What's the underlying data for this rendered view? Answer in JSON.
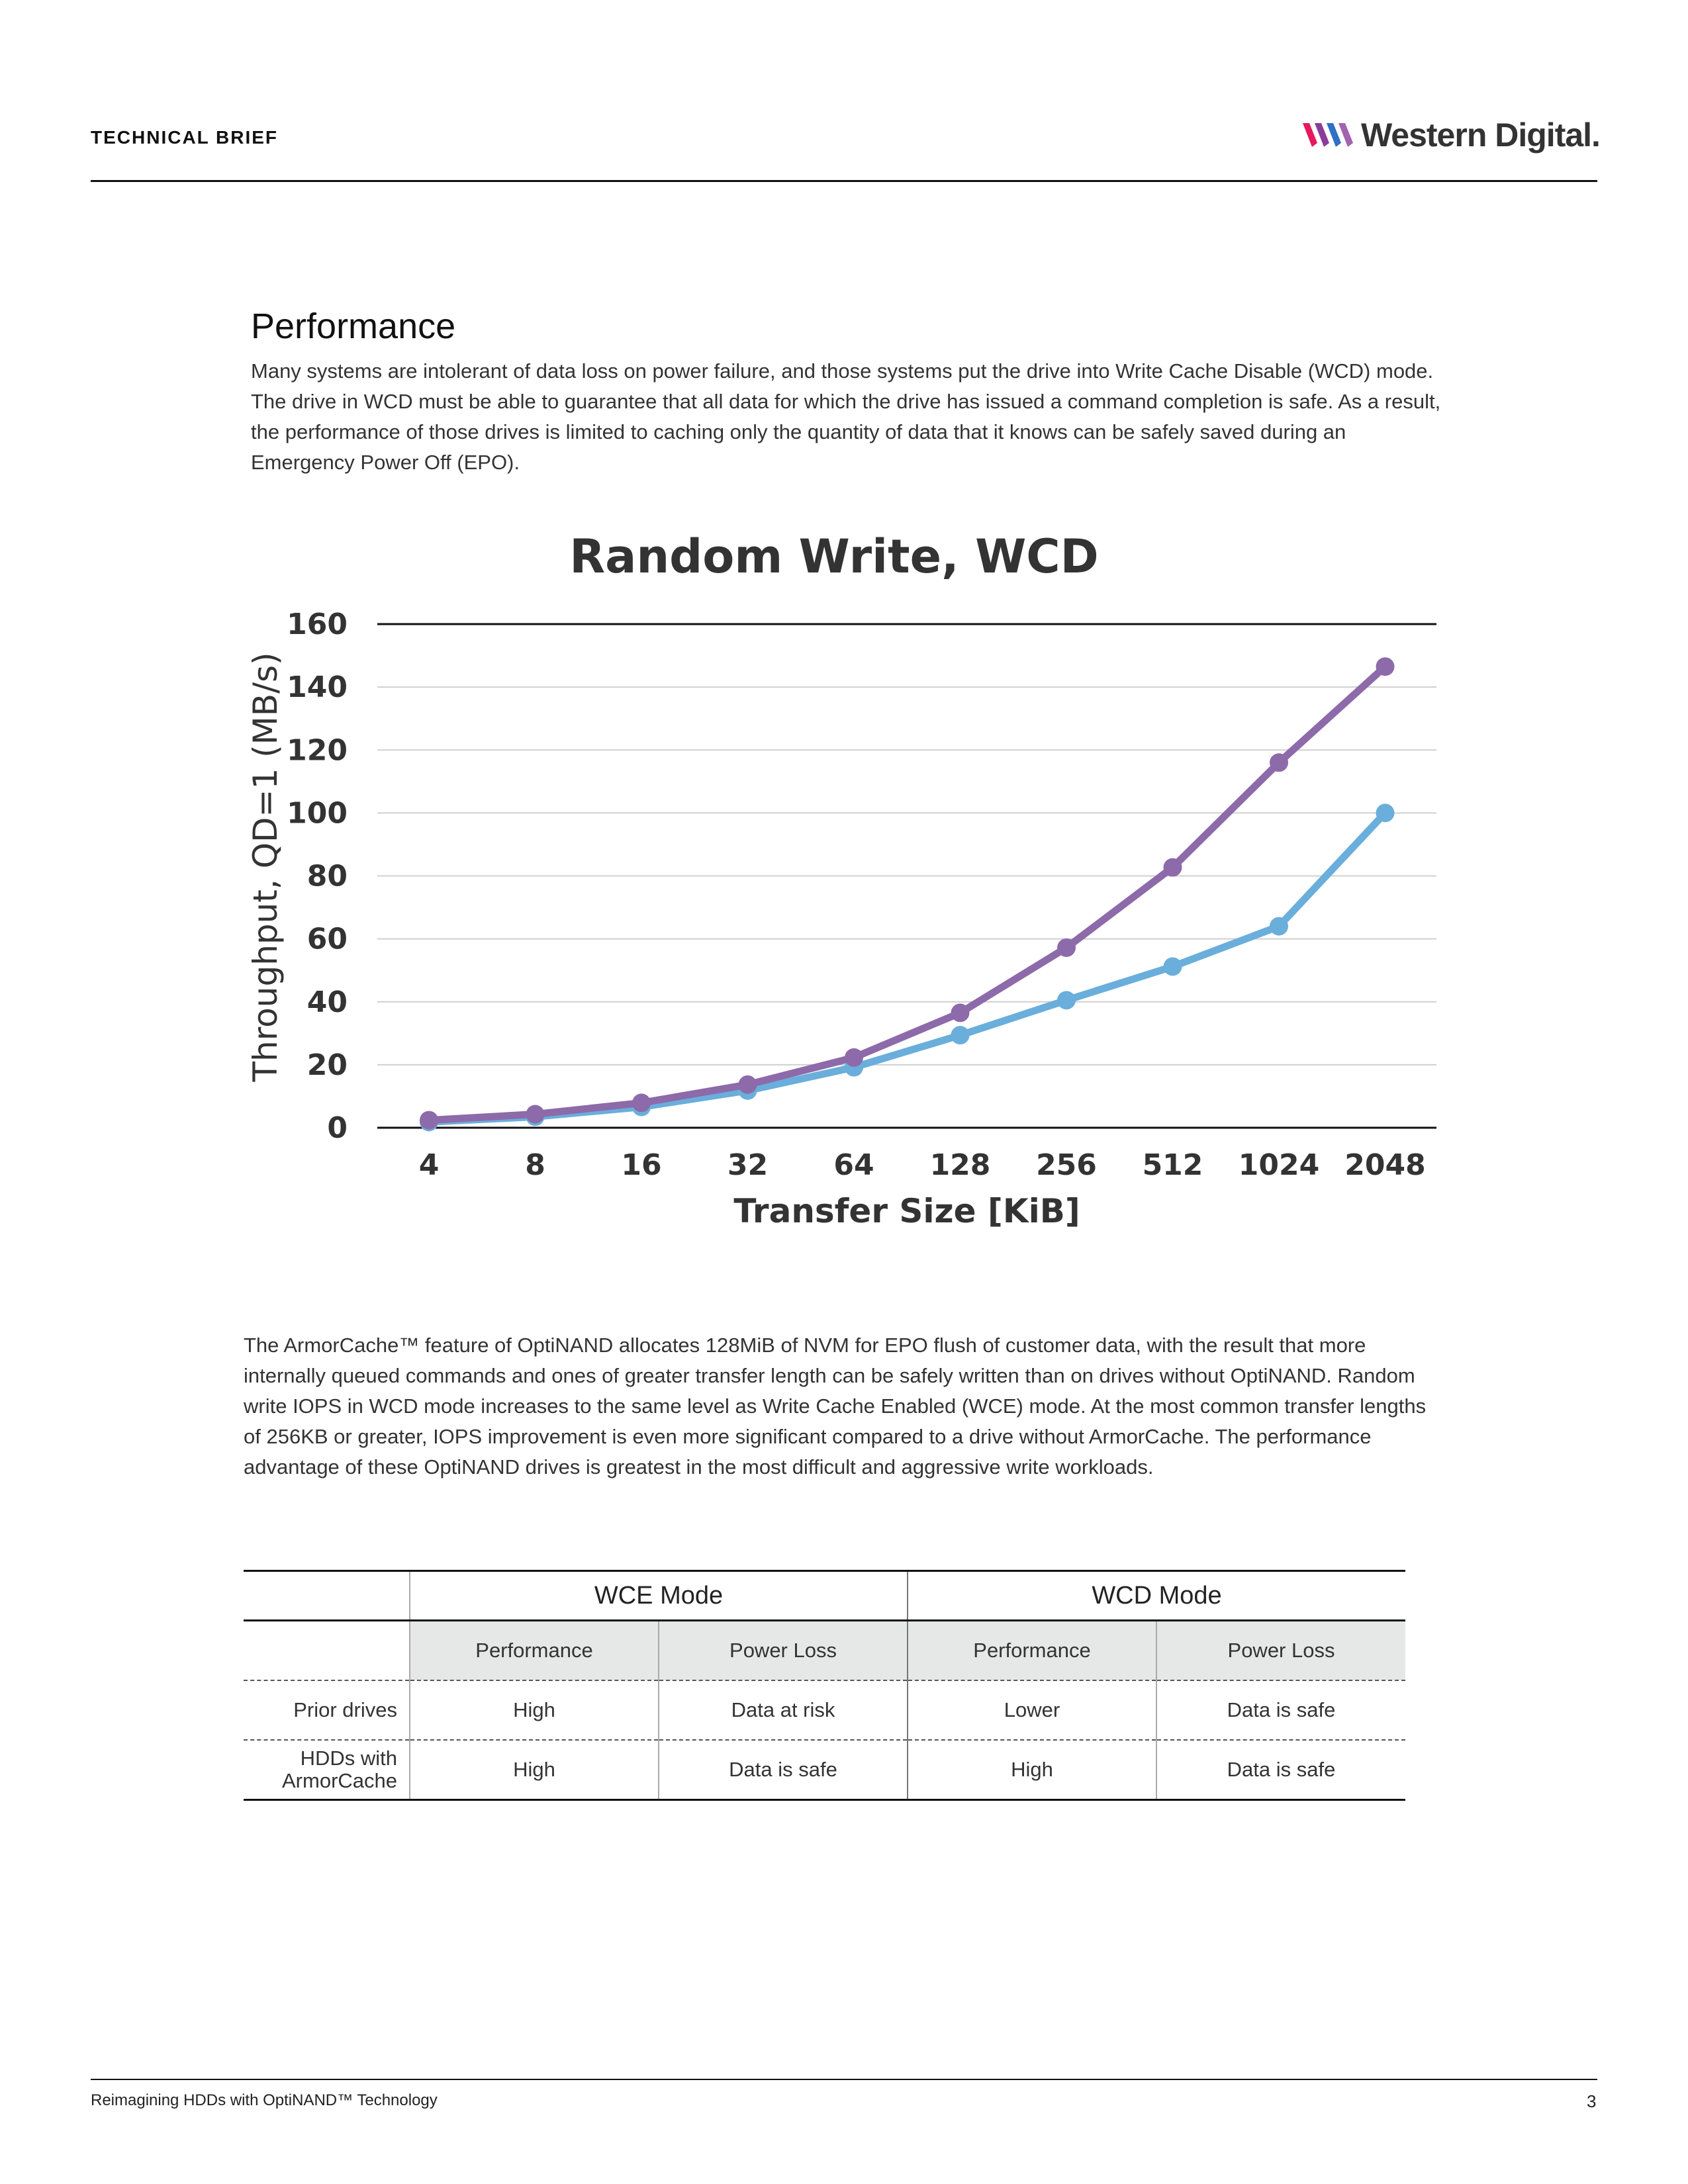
{
  "header": {
    "label": "TECHNICAL BRIEF",
    "logo_text": "Western Digital.",
    "logo_colors": [
      "#e5195e",
      "#8b3d9a",
      "#2f6fc4"
    ]
  },
  "section": {
    "title": "Performance",
    "intro": "Many systems are intolerant of data loss on power failure, and those systems put the drive into Write Cache Disable (WCD) mode. The drive in WCD must be able to guarantee that all data for which the drive has issued a command completion is safe. As a result, the performance of those drives is limited to caching only the quantity of data that it knows can be safely saved during an Emergency Power Off (EPO)."
  },
  "chart_data": {
    "type": "line",
    "title": "Random Write, WCD",
    "xlabel": "Transfer Size [KiB]",
    "ylabel": "Throughput, QD=1 (MB/s)",
    "categories": [
      "4",
      "8",
      "16",
      "32",
      "64",
      "128",
      "256",
      "512",
      "1024",
      "2048"
    ],
    "ylim": [
      0,
      160
    ],
    "yticks": [
      0,
      20,
      40,
      60,
      80,
      100,
      120,
      140,
      160
    ],
    "grid": true,
    "legend": "none",
    "series": [
      {
        "color": "#6aaedb",
        "values": [
          1.8,
          3.5,
          6.6,
          11.8,
          19.2,
          29.4,
          40.5,
          51.2,
          64,
          100
        ]
      },
      {
        "color": "#8d6aa9",
        "values": [
          2.4,
          4.3,
          7.9,
          13.7,
          22.3,
          36.5,
          57.2,
          82.7,
          116,
          146.5
        ]
      }
    ]
  },
  "body": {
    "para2": "The ArmorCache™ feature of OptiNAND allocates 128MiB of NVM for EPO flush of customer data, with the result that more internally queued commands and ones of greater transfer length can be safely written than on drives without OptiNAND. Random write IOPS in WCD mode increases to the same level as Write Cache Enabled (WCE) mode. At the most common transfer lengths of 256KB or greater, IOPS improvement is even more significant compared to a drive without ArmorCache. The performance advantage of these OptiNAND drives is greatest in the most difficult and aggressive write workloads."
  },
  "table": {
    "modes": [
      "WCE Mode",
      "WCD Mode"
    ],
    "subheaders": [
      "Performance",
      "Power Loss",
      "Performance",
      "Power Loss"
    ],
    "rows": [
      {
        "label": "Prior drives",
        "cells": [
          "High",
          "Data at risk",
          "Lower",
          "Data is safe"
        ]
      },
      {
        "label": "HDDs with ArmorCache",
        "cells": [
          "High",
          "Data is safe",
          "High",
          "Data is safe"
        ]
      }
    ]
  },
  "footer": {
    "left": "Reimagining HDDs with OptiNAND™ Technology",
    "page": "3"
  }
}
